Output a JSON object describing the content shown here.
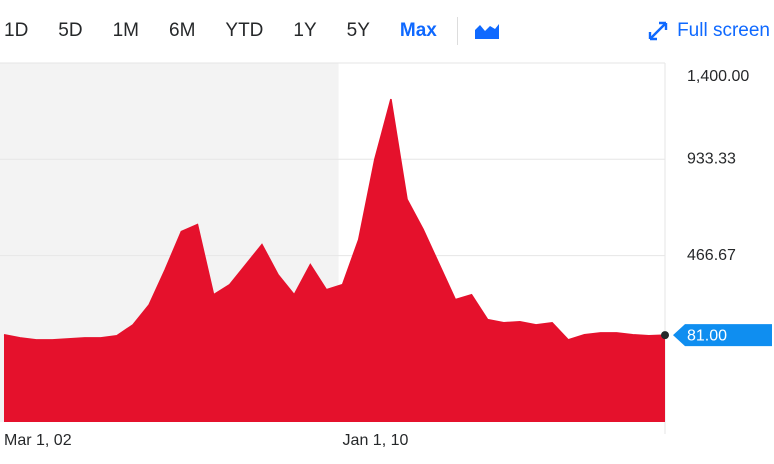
{
  "toolbar": {
    "ranges": [
      "1D",
      "5D",
      "1M",
      "6M",
      "YTD",
      "1Y",
      "5Y",
      "Max"
    ],
    "active": "Max",
    "fullscreen": "Full screen"
  },
  "chart_data": {
    "type": "area",
    "color": "#e5112c",
    "categories": [
      "Mar 1, 02",
      null,
      null,
      null,
      null,
      null,
      null,
      null,
      null,
      null,
      null,
      null,
      null,
      null,
      null,
      null,
      null,
      null,
      null,
      null,
      null,
      "Jan 1, 10",
      null,
      null,
      null,
      null,
      null,
      null,
      null,
      null,
      null,
      null,
      null,
      null,
      null,
      null,
      null,
      null,
      null,
      null,
      null,
      null
    ],
    "values": [
      83,
      68,
      58,
      58,
      63,
      68,
      68,
      78,
      131,
      228,
      399,
      583,
      617,
      277,
      326,
      423,
      520,
      374,
      277,
      423,
      301,
      326,
      544,
      933,
      1225,
      739,
      593,
      423,
      253,
      277,
      156,
      141,
      146,
      131,
      141,
      58,
      83,
      92,
      92,
      83,
      78,
      81
    ],
    "value_labels": [
      null,
      null,
      null,
      null,
      null,
      null,
      null,
      null,
      null,
      null,
      null,
      null,
      null,
      null,
      null,
      null,
      null,
      null,
      null,
      null,
      null,
      null,
      null,
      null,
      null,
      null,
      null,
      null,
      null,
      null,
      null,
      null,
      null,
      null,
      null,
      null,
      null,
      null,
      null,
      null,
      null,
      "81.00"
    ],
    "ylim": [
      -340,
      1400
    ],
    "yticks": [
      {
        "value": 466.67,
        "label": "466.67"
      },
      {
        "value": 933.33,
        "label": "933.33"
      },
      {
        "value": 1400,
        "label": "1,400.00"
      }
    ],
    "grid": true
  }
}
